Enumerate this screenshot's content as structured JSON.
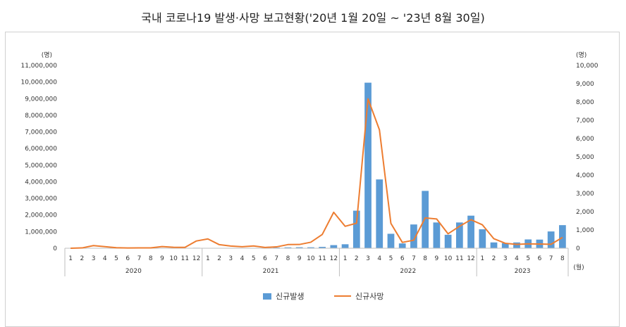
{
  "chart_data": {
    "type": "bar+line",
    "title": "국내 코로나19 발생·사망 보고현황('20년 1월 20일 ~ '23년 8월 30일)",
    "left_axis_unit": "(명)",
    "right_axis_unit": "(명)",
    "x_axis_unit": "(월)",
    "left_ylim": [
      0,
      11000000
    ],
    "right_ylim": [
      0,
      10000
    ],
    "left_ticks": [
      "0",
      "1,000,000",
      "2,000,000",
      "3,000,000",
      "4,000,000",
      "5,000,000",
      "6,000,000",
      "7,000,000",
      "8,000,000",
      "9,000,000",
      "10,000,000",
      "11,000,000"
    ],
    "right_ticks": [
      "0",
      "1,000",
      "2,000",
      "3,000",
      "4,000",
      "5,000",
      "6,000",
      "7,000",
      "8,000",
      "9,000",
      "10,000"
    ],
    "years": [
      {
        "label": "2020",
        "months": [
          "1",
          "2",
          "3",
          "4",
          "5",
          "6",
          "7",
          "8",
          "9",
          "10",
          "11",
          "12"
        ]
      },
      {
        "label": "2021",
        "months": [
          "1",
          "2",
          "3",
          "4",
          "5",
          "6",
          "7",
          "8",
          "9",
          "10",
          "11",
          "12"
        ]
      },
      {
        "label": "2022",
        "months": [
          "1",
          "2",
          "3",
          "4",
          "5",
          "6",
          "7",
          "8",
          "9",
          "10",
          "11",
          "12"
        ]
      },
      {
        "label": "2023",
        "months": [
          "1",
          "2",
          "3",
          "4",
          "5",
          "6",
          "7",
          "8"
        ]
      }
    ],
    "series": [
      {
        "name": "신규발생",
        "axis": "left",
        "kind": "bar",
        "color": "#5b9bd5",
        "values": [
          11,
          3150,
          6636,
          979,
          703,
          1331,
          1506,
          5642,
          3865,
          2700,
          7690,
          26528,
          17530,
          11380,
          13240,
          18890,
          17710,
          15200,
          41380,
          53030,
          59900,
          58000,
          82000,
          188000,
          240000,
          2260000,
          9960000,
          4140000,
          870000,
          290000,
          1430000,
          3450000,
          1550000,
          810000,
          1550000,
          1960000,
          1140000,
          350000,
          310000,
          350000,
          530000,
          520000,
          1010000,
          1390000
        ]
      },
      {
        "name": "신규사망",
        "axis": "right",
        "kind": "line",
        "color": "#ed7d31",
        "values": [
          0,
          17,
          145,
          85,
          28,
          15,
          20,
          19,
          90,
          54,
          46,
          397,
          508,
          195,
          120,
          80,
          125,
          45,
          75,
          200,
          205,
          330,
          754,
          1967,
          1200,
          1370,
          8172,
          6475,
          1360,
          320,
          440,
          1660,
          1600,
          790,
          1200,
          1560,
          1280,
          520,
          270,
          210,
          240,
          230,
          215,
          590
        ]
      }
    ]
  }
}
